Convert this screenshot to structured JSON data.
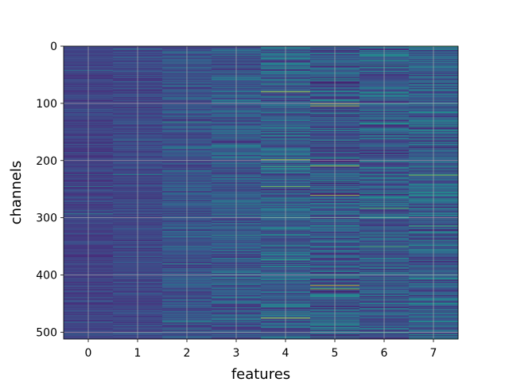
{
  "chart_data": {
    "type": "heatmap",
    "title": "",
    "xlabel": "features",
    "ylabel": "channels",
    "x_categories": [
      "0",
      "1",
      "2",
      "3",
      "4",
      "5",
      "6",
      "7"
    ],
    "y_ticks": [
      0,
      100,
      200,
      300,
      400,
      500
    ],
    "ylim": [
      0,
      512
    ],
    "rows": 512,
    "columns": 8,
    "y_axis_inverted": true,
    "grid": true,
    "colormap": "viridis",
    "column_base_intensity": [
      0.2,
      0.22,
      0.26,
      0.28,
      0.3,
      0.28,
      0.3,
      0.3
    ],
    "column_variability": [
      0.07,
      0.08,
      0.12,
      0.15,
      0.18,
      0.2,
      0.2,
      0.2
    ],
    "highlights": [
      {
        "column": 4,
        "row": 79,
        "value": 0.95
      },
      {
        "column": 4,
        "row": 198,
        "value": 0.85
      },
      {
        "column": 4,
        "row": 245,
        "value": 0.8
      },
      {
        "column": 4,
        "row": 475,
        "value": 0.95
      },
      {
        "column": 5,
        "row": 100,
        "value": 0.95
      },
      {
        "column": 5,
        "row": 104,
        "value": 0.9
      },
      {
        "column": 5,
        "row": 209,
        "value": 0.9
      },
      {
        "column": 5,
        "row": 260,
        "value": 0.9
      },
      {
        "column": 5,
        "row": 418,
        "value": 0.95
      },
      {
        "column": 5,
        "row": 424,
        "value": 0.85
      },
      {
        "column": 6,
        "row": 283,
        "value": 0.75
      },
      {
        "column": 6,
        "row": 350,
        "value": 0.7
      },
      {
        "column": 7,
        "row": 0,
        "value": 0.7
      },
      {
        "column": 7,
        "row": 225,
        "value": 0.85
      },
      {
        "column": 7,
        "row": 314,
        "value": 0.7
      }
    ]
  }
}
